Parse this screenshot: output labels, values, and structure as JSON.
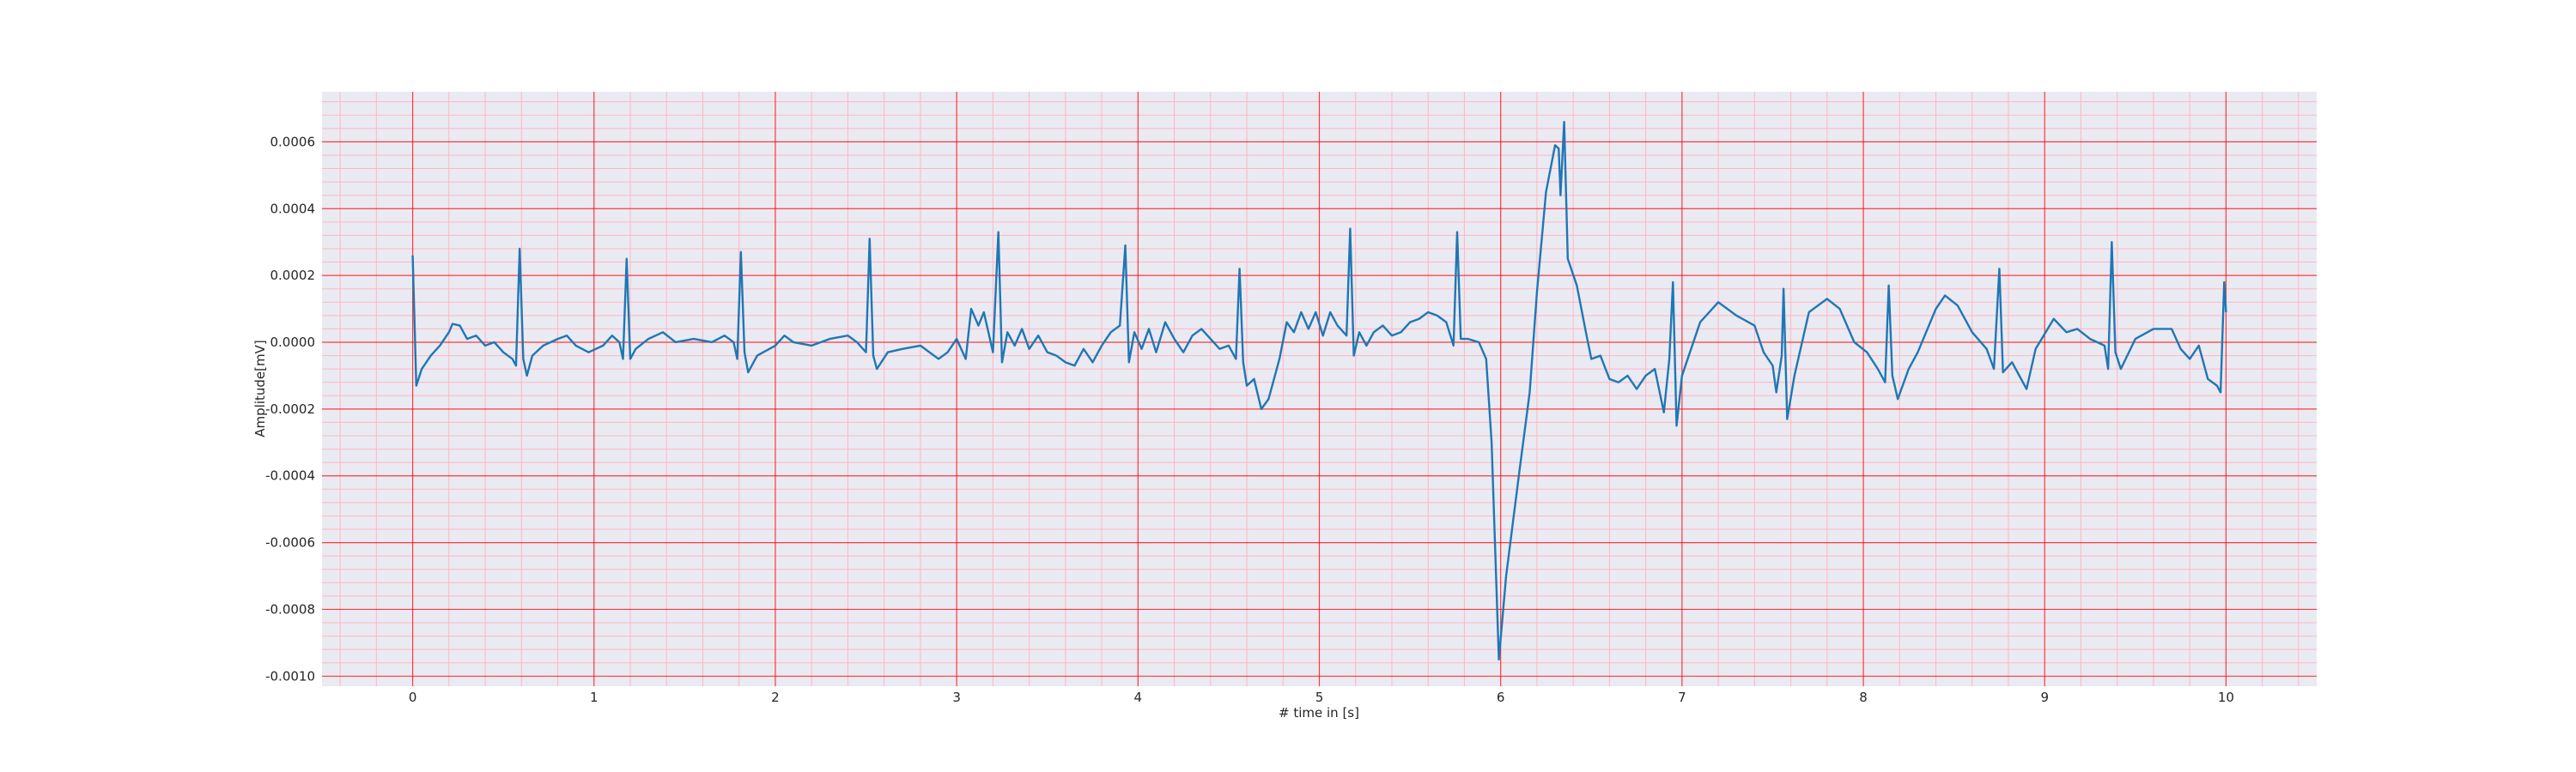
{
  "chart_data": {
    "type": "line",
    "xlabel": "# time in [s]",
    "ylabel": "Amplitude[mV]",
    "color": "#1f77b4",
    "background": "#eaeaf2",
    "grid": true,
    "grid_color": "#ff0000",
    "minor_grid_color": "#ffb6c1",
    "xlim": [
      -0.5,
      10.5
    ],
    "ylim": [
      -0.00103,
      0.00075
    ],
    "xticks": [
      0,
      1,
      2,
      3,
      4,
      5,
      6,
      7,
      8,
      9,
      10
    ],
    "yticks": [
      {
        "value": -0.001,
        "label": "-0.0010"
      },
      -0.0008,
      -0.0006,
      -0.0004,
      -0.0002,
      {
        "value": 0,
        "label": "0.0000"
      },
      0.0002,
      0.0004,
      0.0006
    ],
    "x": [
      0,
      0.02,
      0.05,
      0.1,
      0.15,
      0.2,
      0.22,
      0.26,
      0.3,
      0.35,
      0.4,
      0.45,
      0.5,
      0.55,
      0.57,
      0.59,
      0.61,
      0.63,
      0.66,
      0.72,
      0.8,
      0.85,
      0.9,
      0.97,
      1.05,
      1.1,
      1.14,
      1.16,
      1.18,
      1.2,
      1.23,
      1.3,
      1.38,
      1.45,
      1.55,
      1.65,
      1.72,
      1.77,
      1.79,
      1.81,
      1.83,
      1.85,
      1.9,
      2.0,
      2.05,
      2.1,
      2.2,
      2.3,
      2.4,
      2.45,
      2.5,
      2.52,
      2.54,
      2.56,
      2.62,
      2.7,
      2.8,
      2.9,
      2.95,
      3.0,
      3.05,
      3.08,
      3.12,
      3.15,
      3.2,
      3.23,
      3.25,
      3.28,
      3.32,
      3.36,
      3.4,
      3.45,
      3.5,
      3.55,
      3.6,
      3.65,
      3.7,
      3.75,
      3.8,
      3.85,
      3.9,
      3.93,
      3.95,
      3.98,
      4.02,
      4.06,
      4.1,
      4.15,
      4.2,
      4.25,
      4.3,
      4.35,
      4.4,
      4.45,
      4.5,
      4.54,
      4.56,
      4.58,
      4.6,
      4.64,
      4.68,
      4.72,
      4.78,
      4.82,
      4.86,
      4.9,
      4.94,
      4.98,
      5.02,
      5.06,
      5.1,
      5.15,
      5.17,
      5.19,
      5.22,
      5.26,
      5.3,
      5.35,
      5.4,
      5.45,
      5.5,
      5.55,
      5.6,
      5.65,
      5.7,
      5.74,
      5.76,
      5.78,
      5.82,
      5.88,
      5.92,
      5.95,
      5.99,
      6.03,
      6.1,
      6.16,
      6.2,
      6.25,
      6.3,
      6.32,
      6.33,
      6.35,
      6.37,
      6.42,
      6.47,
      6.5,
      6.55,
      6.6,
      6.65,
      6.7,
      6.75,
      6.8,
      6.85,
      6.9,
      6.93,
      6.95,
      6.97,
      7.0,
      7.1,
      7.2,
      7.3,
      7.4,
      7.45,
      7.5,
      7.52,
      7.55,
      7.56,
      7.58,
      7.62,
      7.7,
      7.8,
      7.87,
      7.95,
      8.02,
      8.08,
      8.12,
      8.14,
      8.16,
      8.19,
      8.25,
      8.3,
      8.4,
      8.45,
      8.52,
      8.6,
      8.68,
      8.72,
      8.75,
      8.77,
      8.82,
      8.9,
      8.95,
      9.05,
      9.12,
      9.18,
      9.25,
      9.33,
      9.35,
      9.37,
      9.39,
      9.42,
      9.5,
      9.6,
      9.7,
      9.75,
      9.8,
      9.85,
      9.9,
      9.95,
      9.97,
      9.99,
      10.0
    ],
    "values": [
      0.00026,
      -0.00013,
      -8e-05,
      -4e-05,
      -1e-05,
      3e-05,
      5.5e-05,
      5e-05,
      1e-05,
      2e-05,
      -1e-05,
      0,
      -3e-05,
      -5e-05,
      -7e-05,
      0.00028,
      -5e-05,
      -0.0001,
      -4e-05,
      -1e-05,
      1e-05,
      2e-05,
      -1e-05,
      -3e-05,
      -1e-05,
      2e-05,
      0,
      -5e-05,
      0.00025,
      -5e-05,
      -2e-05,
      1e-05,
      3e-05,
      0,
      1e-05,
      0,
      2e-05,
      0,
      -5e-05,
      0.00027,
      -3e-05,
      -9e-05,
      -4e-05,
      -1e-05,
      2e-05,
      0,
      -1e-05,
      1e-05,
      2e-05,
      0,
      -3e-05,
      0.00031,
      -4e-05,
      -8e-05,
      -3e-05,
      -2e-05,
      -1e-05,
      -5e-05,
      -3e-05,
      1e-05,
      -5e-05,
      0.0001,
      5e-05,
      9e-05,
      -3e-05,
      0.00033,
      -6e-05,
      3e-05,
      -1e-05,
      4e-05,
      -2e-05,
      2e-05,
      -3e-05,
      -4e-05,
      -6e-05,
      -7e-05,
      -2e-05,
      -6e-05,
      -1e-05,
      3e-05,
      5e-05,
      0.00029,
      -6e-05,
      3e-05,
      -2e-05,
      4e-05,
      -3e-05,
      6e-05,
      1e-05,
      -3e-05,
      2e-05,
      4e-05,
      1e-05,
      -2e-05,
      -1e-05,
      -5e-05,
      0.00022,
      -6e-05,
      -0.00013,
      -0.00011,
      -0.0002,
      -0.00017,
      -5e-05,
      6e-05,
      3e-05,
      9e-05,
      4e-05,
      9e-05,
      2e-05,
      9e-05,
      5e-05,
      2e-05,
      0.00034,
      -4e-05,
      3e-05,
      -1e-05,
      3e-05,
      5e-05,
      2e-05,
      3e-05,
      6e-05,
      7e-05,
      9e-05,
      8e-05,
      6e-05,
      -1e-05,
      0.00033,
      1e-05,
      1e-05,
      0,
      -5e-05,
      -0.0003,
      -0.00095,
      -0.0007,
      -0.0004,
      -0.00015,
      0.00015,
      0.00045,
      0.00059,
      0.00058,
      0.00044,
      0.00066,
      0.00025,
      0.00017,
      3e-05,
      -5e-05,
      -4e-05,
      -0.00011,
      -0.00012,
      -0.0001,
      -0.00014,
      -0.0001,
      -8e-05,
      -0.00021,
      -5e-05,
      0.00018,
      -0.00025,
      -0.0001,
      6e-05,
      0.00012,
      8e-05,
      5e-05,
      -3e-05,
      -7e-05,
      -0.00015,
      -4e-05,
      0.00016,
      -0.00023,
      -0.0001,
      9e-05,
      0.00013,
      0.0001,
      0,
      -3e-05,
      -8e-05,
      -0.00012,
      0.00017,
      -0.0001,
      -0.00017,
      -8e-05,
      -3e-05,
      0.0001,
      0.00014,
      0.00011,
      3e-05,
      -2e-05,
      -8e-05,
      0.00022,
      -9e-05,
      -6e-05,
      -0.00014,
      -2e-05,
      7e-05,
      3e-05,
      4e-05,
      1e-05,
      -1e-05,
      -8e-05,
      0.0003,
      -3e-05,
      -8e-05,
      1e-05,
      4e-05,
      4e-05,
      -2e-05,
      -5e-05,
      -1e-05,
      -0.00011,
      -0.00013,
      -0.00015,
      0.00018,
      9e-05
    ]
  }
}
